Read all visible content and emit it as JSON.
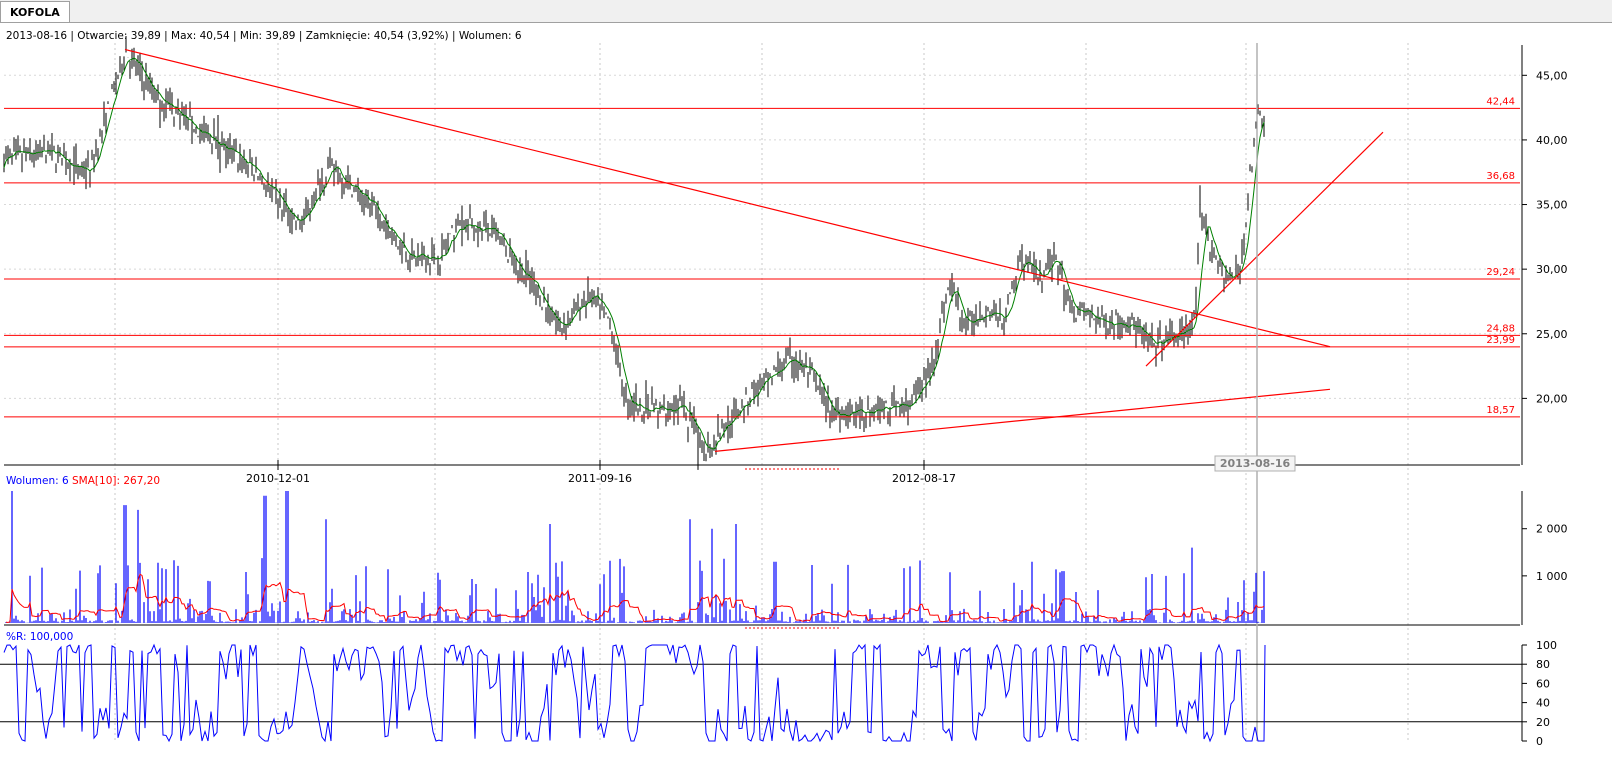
{
  "tab": {
    "label": "KOFOLA"
  },
  "info": {
    "date": "2013-08-16",
    "open": "Otwarcie: 39,89",
    "max": "Max: 40,54",
    "min": "Min: 39,89",
    "close": "Zamknięcie: 40,54 (3,92%)",
    "volume": "Wolumen: 6"
  },
  "chart_data": [
    {
      "type": "line",
      "title": "",
      "ylim": [
        15,
        47.5
      ],
      "yticks": [
        "45,00",
        "40,00",
        "35,00",
        "30,00",
        "25,00",
        "20,00"
      ],
      "ytick_values": [
        45,
        40,
        35,
        30,
        25,
        20
      ],
      "xticks": [
        "2010-12-01",
        "2011-09-16",
        "2012-08-17"
      ],
      "cursor_label": "2013-08-16",
      "price_keypoints": [
        [
          0,
          38.5
        ],
        [
          50,
          39
        ],
        [
          90,
          37.5
        ],
        [
          125,
          47
        ],
        [
          150,
          44
        ],
        [
          200,
          40.5
        ],
        [
          250,
          38
        ],
        [
          280,
          35
        ],
        [
          300,
          33.5
        ],
        [
          330,
          38
        ],
        [
          370,
          35
        ],
        [
          410,
          31
        ],
        [
          440,
          31
        ],
        [
          460,
          33.5
        ],
        [
          490,
          33
        ],
        [
          530,
          29
        ],
        [
          560,
          25.5
        ],
        [
          590,
          28
        ],
        [
          610,
          26
        ],
        [
          625,
          20
        ],
        [
          650,
          19
        ],
        [
          680,
          19.5
        ],
        [
          705,
          16
        ],
        [
          725,
          18
        ],
        [
          760,
          21
        ],
        [
          790,
          23
        ],
        [
          810,
          22
        ],
        [
          830,
          19
        ],
        [
          860,
          19
        ],
        [
          910,
          19.5
        ],
        [
          930,
          22
        ],
        [
          950,
          29
        ],
        [
          965,
          25.5
        ],
        [
          985,
          27
        ],
        [
          1005,
          26
        ],
        [
          1020,
          31
        ],
        [
          1040,
          29
        ],
        [
          1055,
          31
        ],
        [
          1070,
          27
        ],
        [
          1100,
          26
        ],
        [
          1130,
          26
        ],
        [
          1150,
          24
        ],
        [
          1180,
          25
        ],
        [
          1195,
          26
        ],
        [
          1200,
          34
        ],
        [
          1215,
          31
        ],
        [
          1230,
          29
        ],
        [
          1240,
          30
        ],
        [
          1250,
          37
        ],
        [
          1258,
          42
        ],
        [
          1265,
          41.5
        ]
      ],
      "horizontal_levels": [
        42.44,
        36.68,
        29.24,
        24.88,
        23.99,
        18.57
      ],
      "level_labels": [
        "42,44",
        "36,68",
        "29,24",
        "24,88",
        "23,99",
        "18,57"
      ],
      "trend_lines": [
        [
          [
            125,
            47
          ],
          [
            1330,
            24
          ]
        ],
        [
          [
            715,
            15.9
          ],
          [
            1330,
            20.7
          ]
        ],
        [
          [
            1146,
            22.5
          ],
          [
            1383,
            40.6
          ]
        ]
      ],
      "colors": {
        "price": "#000000",
        "sma": "#008000",
        "levels": "#ff0000"
      }
    },
    {
      "type": "bar",
      "title": "",
      "legend": [
        {
          "name": "Wolumen: 6",
          "color": "#0000ff"
        },
        {
          "name": "SMA[10]: 267,20",
          "color": "#ff0000"
        }
      ],
      "ylim": [
        0,
        2800
      ],
      "yticks": [
        "2 000",
        "1 000"
      ],
      "ytick_values": [
        2000,
        1000
      ],
      "volume_spikes": [
        [
          12,
          2800
        ],
        [
          125,
          2500
        ],
        [
          138,
          2400
        ],
        [
          265,
          2700
        ],
        [
          287,
          2800
        ],
        [
          326,
          2200
        ],
        [
          550,
          2100
        ],
        [
          624,
          1200
        ],
        [
          690,
          2200
        ],
        [
          712,
          2000
        ],
        [
          736,
          2100
        ],
        [
          775,
          1300
        ],
        [
          910,
          1200
        ],
        [
          1063,
          1100
        ],
        [
          1192,
          1600
        ],
        [
          1264,
          1100
        ]
      ],
      "colors": {
        "volume": "#0000ff",
        "sma": "#ff0000"
      }
    },
    {
      "type": "line",
      "title": "",
      "legend": [
        {
          "name": "%R: 100,000",
          "color": "#0000ff"
        }
      ],
      "ylim": [
        0,
        100
      ],
      "yticks": [
        "100",
        "80",
        "60",
        "40",
        "20",
        "0"
      ],
      "ytick_values": [
        100,
        80,
        60,
        40,
        20,
        0
      ],
      "reference_lines": [
        80,
        20
      ],
      "colors": {
        "line": "#0000ff"
      }
    }
  ]
}
